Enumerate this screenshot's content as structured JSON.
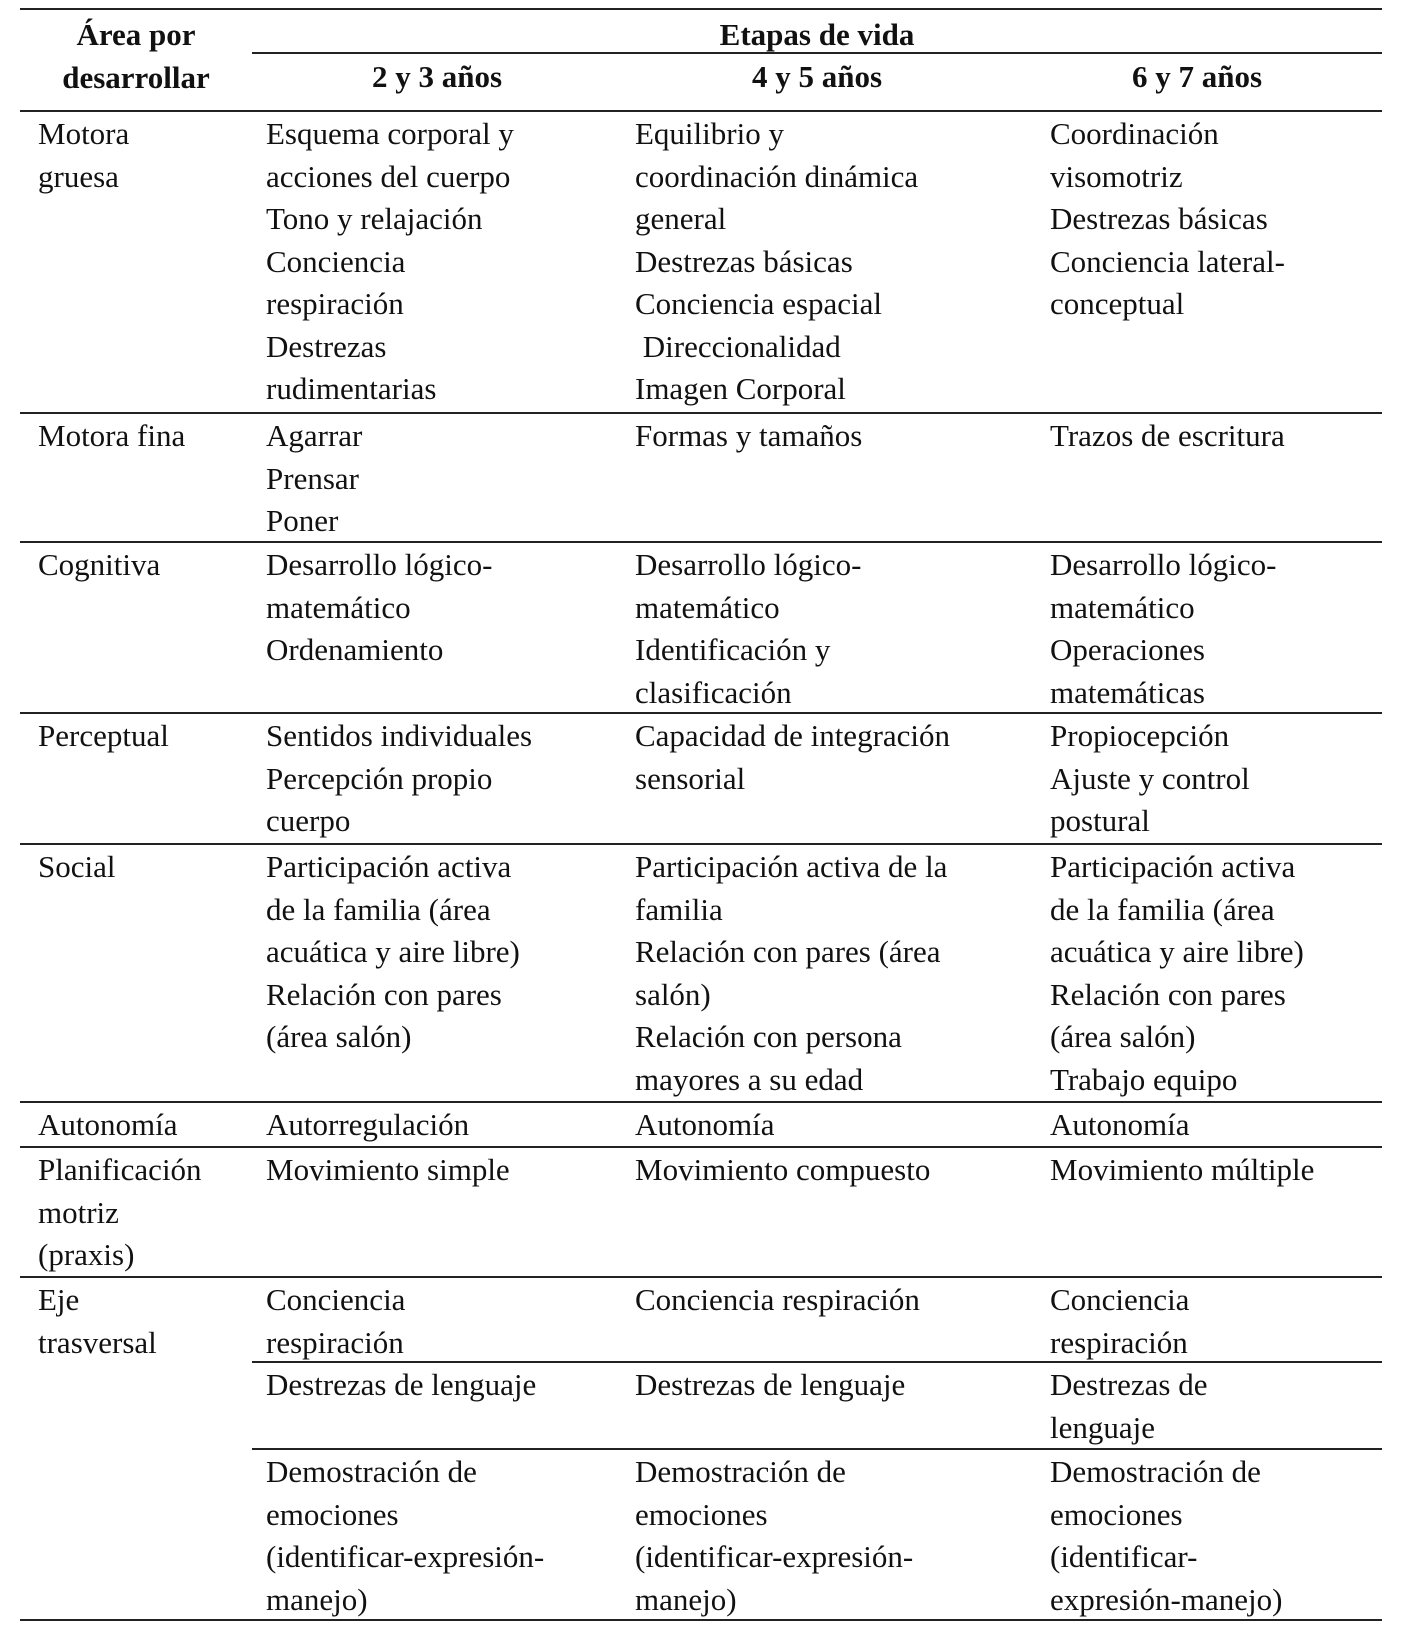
{
  "header": {
    "area_label": [
      "Área por",
      "desarrollar"
    ],
    "group_label": "Etapas de vida",
    "stages": [
      "2 y 3 años",
      "4 y 5 años",
      "6 y 7 años"
    ]
  },
  "rows": [
    {
      "area": [
        "Motora",
        "gruesa"
      ],
      "cells": [
        [
          "Esquema corporal y",
          "acciones del cuerpo",
          "Tono y relajación",
          "Conciencia",
          "respiración",
          "Destrezas",
          "rudimentarias"
        ],
        [
          "Equilibrio y",
          "coordinación dinámica",
          "general",
          "Destrezas básicas",
          "Conciencia espacial",
          " Direccionalidad",
          "Imagen Corporal"
        ],
        [
          "Coordinación",
          "visomotriz",
          "Destrezas básicas",
          "Conciencia lateral-",
          "conceptual"
        ]
      ]
    },
    {
      "area": [
        "Motora fina"
      ],
      "cells": [
        [
          "Agarrar",
          "Prensar",
          "Poner"
        ],
        [
          "Formas y tamaños"
        ],
        [
          "Trazos de escritura"
        ]
      ]
    },
    {
      "area": [
        "Cognitiva"
      ],
      "cells": [
        [
          "Desarrollo lógico-",
          "matemático",
          "Ordenamiento"
        ],
        [
          "Desarrollo lógico-",
          "matemático",
          "Identificación y",
          "clasificación"
        ],
        [
          "Desarrollo lógico-",
          "matemático",
          "Operaciones",
          "matemáticas"
        ]
      ]
    },
    {
      "area": [
        "Perceptual"
      ],
      "cells": [
        [
          "Sentidos individuales",
          "Percepción propio",
          "cuerpo"
        ],
        [
          "Capacidad de integración",
          "sensorial"
        ],
        [
          "Propiocepción",
          "Ajuste y control",
          "postural"
        ]
      ]
    },
    {
      "area": [
        "Social"
      ],
      "cells": [
        [
          "Participación activa",
          "de la familia (área",
          "acuática y aire libre)",
          "Relación con pares",
          "(área salón)"
        ],
        [
          "Participación activa de la",
          "familia",
          "Relación con pares (área",
          "salón)",
          "Relación con persona",
          "mayores a su edad"
        ],
        [
          "Participación activa",
          "de la familia (área",
          "acuática y aire libre)",
          "Relación con pares",
          "(área salón)",
          "Trabajo equipo"
        ]
      ]
    },
    {
      "area": [
        "Autonomía"
      ],
      "cells": [
        [
          "Autorregulación"
        ],
        [
          "Autonomía"
        ],
        [
          "Autonomía"
        ]
      ]
    },
    {
      "area": [
        "Planificación",
        "motriz",
        "(praxis)"
      ],
      "cells": [
        [
          "Movimiento simple"
        ],
        [
          "Movimiento compuesto"
        ],
        [
          "Movimiento múltiple"
        ]
      ]
    },
    {
      "area": [
        "Eje",
        "trasversal"
      ],
      "cells": [
        [
          "Conciencia",
          "respiración"
        ],
        [
          "Conciencia respiración"
        ],
        [
          "Conciencia",
          "respiración"
        ]
      ]
    },
    {
      "area": [],
      "cells": [
        [
          "Destrezas de lenguaje"
        ],
        [
          "Destrezas de lenguaje"
        ],
        [
          "Destrezas de",
          "lenguaje"
        ]
      ]
    },
    {
      "area": [],
      "cells": [
        [
          "Demostración de",
          "emociones",
          "(identificar-expresión-",
          "manejo)"
        ],
        [
          "Demostración de",
          "emociones",
          "(identificar-expresión-",
          "manejo)"
        ],
        [
          "Demostración de",
          "emociones",
          "(identificar-",
          "expresión-manejo)"
        ]
      ]
    }
  ]
}
